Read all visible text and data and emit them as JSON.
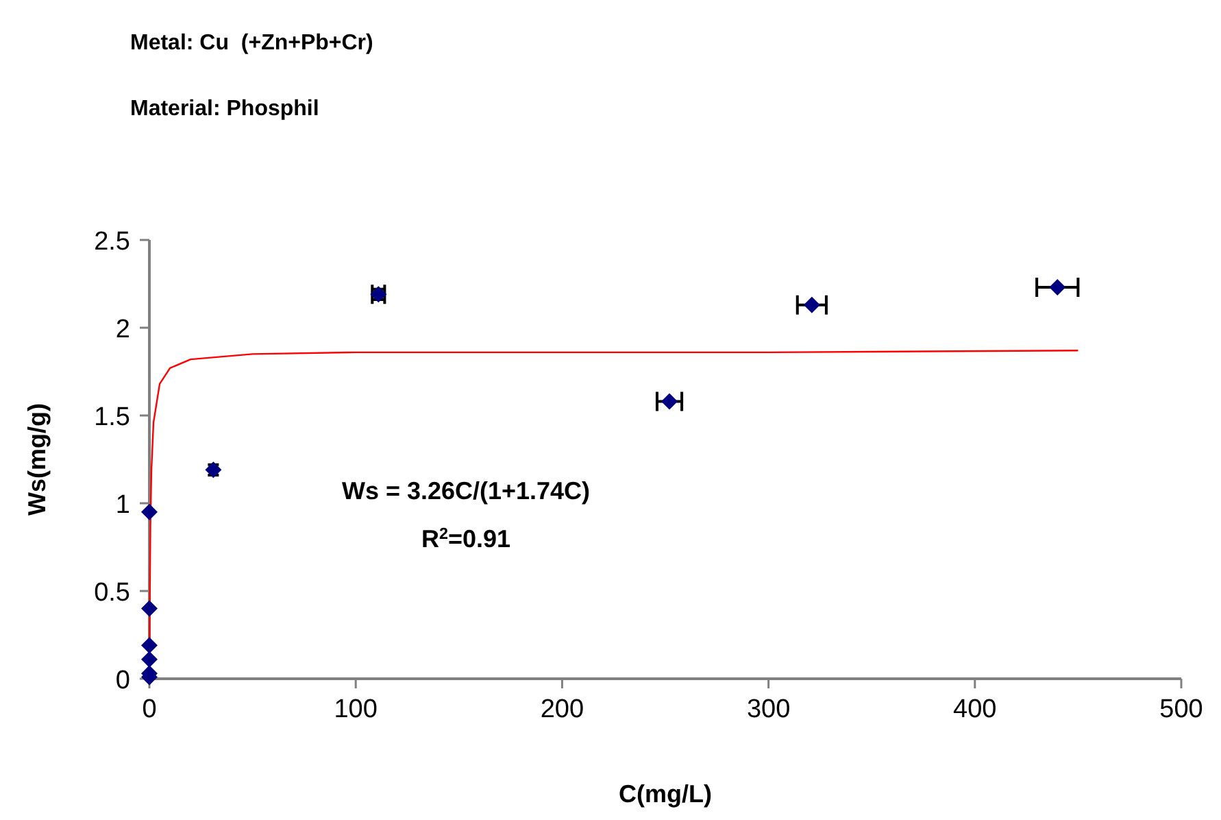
{
  "chart_data": {
    "type": "scatter",
    "title": "Metal: Cu  (+Zn+Pb+Cr)",
    "subtitle": "Material: Phosphil",
    "xlabel": "C(mg/L)",
    "ylabel": "Ws(mg/g)",
    "annotations": [
      "Ws = 3.26C/(1+1.74C)",
      "R$^{2}$=0.91"
    ],
    "xlim": [
      0,
      500
    ],
    "xticks": [
      0,
      100,
      200,
      300,
      400,
      500
    ],
    "ylim": [
      0,
      2.5
    ],
    "yticks": [
      0,
      {
        "value": 0.5,
        "label": "0.5"
      },
      1,
      {
        "value": 1.5,
        "label": "1.5"
      },
      2,
      {
        "value": 2.5,
        "label": "2.5"
      }
    ],
    "grid": false,
    "marker": "diamond",
    "series": [
      {
        "type": "line",
        "color": "#ff0000",
        "marker": "none",
        "line_style": "solid",
        "x": [
          0,
          0.1,
          0.5,
          1,
          2,
          5,
          10,
          20,
          50,
          100,
          200,
          300,
          450
        ],
        "values": [
          0,
          0.28,
          0.87,
          1.19,
          1.46,
          1.68,
          1.77,
          1.82,
          1.85,
          1.86,
          1.86,
          1.86,
          1.87
        ]
      },
      {
        "color": "#000080",
        "x": [
          0,
          0,
          0,
          0,
          0,
          0,
          31,
          111,
          252,
          321,
          440
        ],
        "values": [
          0.01,
          0.03,
          0.11,
          0.19,
          0.4,
          0.95,
          1.19,
          2.19,
          1.58,
          2.13,
          2.23
        ],
        "errors": [
          null,
          null,
          null,
          null,
          null,
          null,
          0.03,
          0.03,
          null,
          null,
          null
        ],
        "xerrors": [
          null,
          null,
          null,
          null,
          null,
          null,
          null,
          3,
          6,
          7,
          10
        ]
      }
    ]
  }
}
